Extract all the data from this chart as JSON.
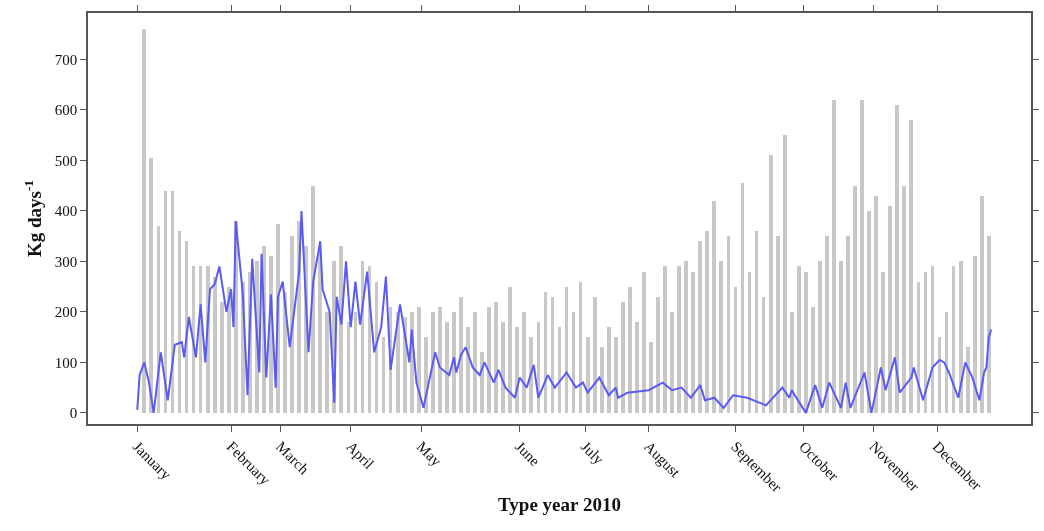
{
  "chart_data": {
    "type": "bar",
    "xlabel": "Type year 2010",
    "ylabel": "Kg days$^{-1}$",
    "xlim": [
      "2009-12-11",
      "2011-01-17"
    ],
    "ylim": [
      -22,
      792
    ],
    "xticks": [
      {
        "value": "2010-01-01",
        "label": "January"
      },
      {
        "value": "2010-02-10",
        "label": "February"
      },
      {
        "value": "2010-03-03",
        "label": "March"
      },
      {
        "value": "2010-04-02",
        "label": "April"
      },
      {
        "value": "2010-05-02",
        "label": "May"
      },
      {
        "value": "2010-06-13",
        "label": "June"
      },
      {
        "value": "2010-07-11",
        "label": "July"
      },
      {
        "value": "2010-08-07",
        "label": "August"
      },
      {
        "value": "2010-09-13",
        "label": "September"
      },
      {
        "value": "2010-10-12",
        "label": "October"
      },
      {
        "value": "2010-11-11",
        "label": "November"
      },
      {
        "value": "2010-12-08",
        "label": "December"
      }
    ],
    "yticks": [
      0,
      100,
      200,
      300,
      400,
      500,
      600,
      700
    ],
    "series": [
      {
        "color": "#c8c8c8",
        "x": [
          "2010-01-04",
          "2010-01-07",
          "2010-01-10",
          "2010-01-13",
          "2010-01-16",
          "2010-01-19",
          "2010-01-22",
          "2010-01-25",
          "2010-01-28",
          "2010-01-31",
          "2010-02-03",
          "2010-02-06",
          "2010-02-09",
          "2010-02-12",
          "2010-02-15",
          "2010-02-18",
          "2010-02-21",
          "2010-02-24",
          "2010-02-27",
          "2010-03-02",
          "2010-03-05",
          "2010-03-08",
          "2010-03-11",
          "2010-03-14",
          "2010-03-17",
          "2010-03-20",
          "2010-03-23",
          "2010-03-26",
          "2010-03-29",
          "2010-04-01",
          "2010-04-04",
          "2010-04-07",
          "2010-04-10",
          "2010-04-13",
          "2010-04-16",
          "2010-04-19",
          "2010-04-22",
          "2010-04-25",
          "2010-04-28",
          "2010-05-01",
          "2010-05-04",
          "2010-05-07",
          "2010-05-10",
          "2010-05-13",
          "2010-05-16",
          "2010-05-19",
          "2010-05-22",
          "2010-05-25",
          "2010-05-28",
          "2010-05-31",
          "2010-06-03",
          "2010-06-06",
          "2010-06-09",
          "2010-06-12",
          "2010-06-15",
          "2010-06-18",
          "2010-06-21",
          "2010-06-24",
          "2010-06-27",
          "2010-06-30",
          "2010-07-03",
          "2010-07-06",
          "2010-07-09",
          "2010-07-12",
          "2010-07-15",
          "2010-07-18",
          "2010-07-21",
          "2010-07-24",
          "2010-07-27",
          "2010-07-30",
          "2010-08-02",
          "2010-08-05",
          "2010-08-08",
          "2010-08-11",
          "2010-08-14",
          "2010-08-17",
          "2010-08-20",
          "2010-08-23",
          "2010-08-26",
          "2010-08-29",
          "2010-09-01",
          "2010-09-04",
          "2010-09-07",
          "2010-09-10",
          "2010-09-13",
          "2010-09-16",
          "2010-09-19",
          "2010-09-22",
          "2010-09-25",
          "2010-09-28",
          "2010-10-01",
          "2010-10-04",
          "2010-10-07",
          "2010-10-10",
          "2010-10-13",
          "2010-10-16",
          "2010-10-19",
          "2010-10-22",
          "2010-10-25",
          "2010-10-28",
          "2010-10-31",
          "2010-11-03",
          "2010-11-06",
          "2010-11-09",
          "2010-11-12",
          "2010-11-15",
          "2010-11-18",
          "2010-11-21",
          "2010-11-24",
          "2010-11-27",
          "2010-11-30",
          "2010-12-03",
          "2010-12-06",
          "2010-12-09",
          "2010-12-12",
          "2010-12-15",
          "2010-12-18",
          "2010-12-21",
          "2010-12-24",
          "2010-12-27",
          "2010-12-30"
        ],
        "values": [
          760,
          505,
          370,
          440,
          440,
          360,
          340,
          290,
          290,
          290,
          270,
          220,
          250,
          380,
          260,
          280,
          300,
          330,
          310,
          375,
          240,
          350,
          380,
          330,
          450,
          320,
          200,
          300,
          330,
          180,
          200,
          300,
          290,
          260,
          150,
          210,
          200,
          190,
          200,
          210,
          150,
          200,
          210,
          180,
          200,
          230,
          170,
          200,
          120,
          210,
          220,
          180,
          250,
          170,
          200,
          150,
          180,
          240,
          230,
          170,
          250,
          200,
          260,
          150,
          230,
          130,
          170,
          150,
          220,
          250,
          180,
          280,
          140,
          230,
          290,
          200,
          290,
          300,
          280,
          340,
          360,
          420,
          300,
          350,
          250,
          455,
          280,
          360,
          230,
          510,
          350,
          550,
          200,
          290,
          280,
          210,
          300,
          350,
          620,
          300,
          350,
          450,
          620,
          400,
          430,
          280,
          410,
          610,
          450,
          580,
          260,
          280,
          290,
          150,
          200,
          290,
          300,
          130,
          310,
          430,
          350
        ]
      },
      {
        "type": "line",
        "color": "#5a5af5",
        "line_style": "solid",
        "marker": "none",
        "x": [
          "2010-01-01",
          "2010-01-02",
          "2010-01-04",
          "2010-01-06",
          "2010-01-08",
          "2010-01-11",
          "2010-01-14",
          "2010-01-17",
          "2010-01-20",
          "2010-01-21",
          "2010-01-23",
          "2010-01-26",
          "2010-01-28",
          "2010-01-30",
          "2010-02-01",
          "2010-02-03",
          "2010-02-05",
          "2010-02-08",
          "2010-02-10",
          "2010-02-11",
          "2010-02-12",
          "2010-02-15",
          "2010-02-17",
          "2010-02-19",
          "2010-02-22",
          "2010-02-23",
          "2010-02-25",
          "2010-02-27",
          "2010-03-01",
          "2010-03-02",
          "2010-03-04",
          "2010-03-07",
          "2010-03-11",
          "2010-03-12",
          "2010-03-15",
          "2010-03-17",
          "2010-03-20",
          "2010-03-21",
          "2010-03-24",
          "2010-03-26",
          "2010-03-27",
          "2010-03-29",
          "2010-03-31",
          "2010-04-02",
          "2010-04-04",
          "2010-04-06",
          "2010-04-09",
          "2010-04-12",
          "2010-04-15",
          "2010-04-17",
          "2010-04-19",
          "2010-04-23",
          "2010-04-27",
          "2010-04-28",
          "2010-04-30",
          "2010-05-03",
          "2010-05-08",
          "2010-05-10",
          "2010-05-14",
          "2010-05-16",
          "2010-05-17",
          "2010-05-19",
          "2010-05-21",
          "2010-05-24",
          "2010-05-27",
          "2010-05-29",
          "2010-06-02",
          "2010-06-04",
          "2010-06-07",
          "2010-06-11",
          "2010-06-13",
          "2010-06-16",
          "2010-06-19",
          "2010-06-21",
          "2010-06-25",
          "2010-06-28",
          "2010-07-03",
          "2010-07-07",
          "2010-07-10",
          "2010-07-12",
          "2010-07-17",
          "2010-07-21",
          "2010-07-24",
          "2010-07-25",
          "2010-07-29",
          "2010-08-07",
          "2010-08-13",
          "2010-08-17",
          "2010-08-21",
          "2010-08-25",
          "2010-08-29",
          "2010-08-31",
          "2010-09-04",
          "2010-09-08",
          "2010-09-12",
          "2010-09-18",
          "2010-09-26",
          "2010-10-03",
          "2010-10-06",
          "2010-10-07",
          "2010-10-13",
          "2010-10-17",
          "2010-10-20",
          "2010-10-23",
          "2010-10-28",
          "2010-10-30",
          "2010-11-01",
          "2010-11-07",
          "2010-11-10",
          "2010-11-14",
          "2010-11-16",
          "2010-11-20",
          "2010-11-22",
          "2010-11-27",
          "2010-11-28",
          "2010-12-02",
          "2010-12-06",
          "2010-12-09",
          "2010-12-11",
          "2010-12-13",
          "2010-12-17",
          "2010-12-20",
          "2010-12-23",
          "2010-12-26",
          "2010-12-28",
          "2010-12-29",
          "2010-12-30",
          "2010-12-31"
        ],
        "values": [
          6,
          75,
          100,
          60,
          0,
          120,
          25,
          135,
          140,
          110,
          190,
          110,
          215,
          100,
          245,
          255,
          290,
          200,
          245,
          170,
          380,
          235,
          35,
          305,
          80,
          315,
          70,
          235,
          50,
          230,
          260,
          130,
          280,
          400,
          120,
          260,
          340,
          245,
          200,
          20,
          230,
          175,
          300,
          170,
          260,
          175,
          280,
          120,
          170,
          270,
          85,
          215,
          100,
          165,
          60,
          10,
          120,
          90,
          75,
          110,
          80,
          115,
          130,
          90,
          75,
          100,
          60,
          85,
          50,
          30,
          70,
          50,
          95,
          30,
          75,
          50,
          80,
          50,
          60,
          40,
          70,
          35,
          50,
          30,
          40,
          45,
          60,
          45,
          50,
          30,
          55,
          25,
          30,
          10,
          35,
          30,
          15,
          50,
          30,
          45,
          0,
          55,
          10,
          60,
          10,
          60,
          10,
          80,
          0,
          90,
          45,
          110,
          40,
          70,
          90,
          25,
          90,
          105,
          100,
          80,
          30,
          100,
          70,
          25,
          80,
          90,
          150,
          165
        ]
      }
    ]
  }
}
